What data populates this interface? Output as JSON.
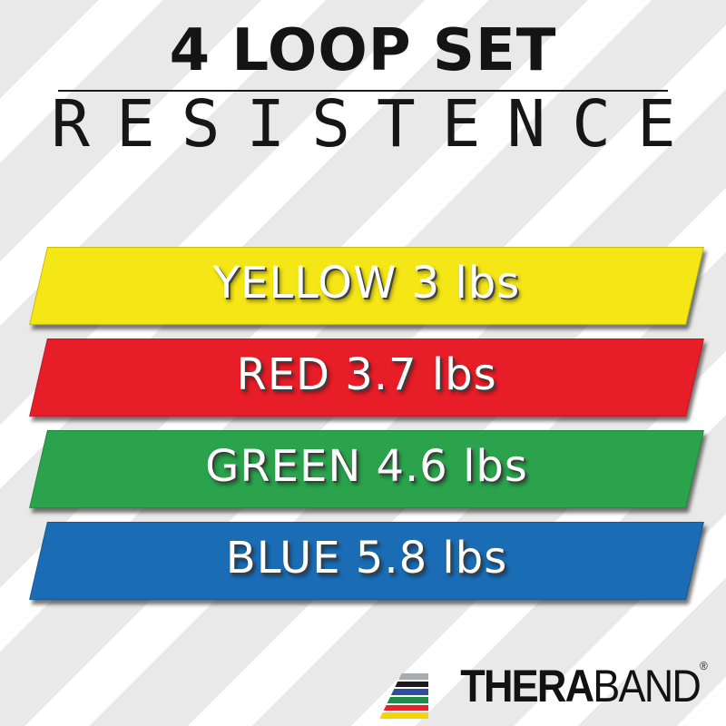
{
  "header": {
    "title": "4 LOOP SET",
    "subtitle": "RESISTENCE"
  },
  "bands": [
    {
      "name": "yellow",
      "label": "YELLOW 3 lbs",
      "color": "#f5e616",
      "weight_lbs": 3.0
    },
    {
      "name": "red",
      "label": "RED 3.7 lbs",
      "color": "#e71d28",
      "weight_lbs": 3.7
    },
    {
      "name": "green",
      "label": "GREEN 4.6 lbs",
      "color": "#2ba34c",
      "weight_lbs": 4.6
    },
    {
      "name": "blue",
      "label": "BLUE 5.8 lbs",
      "color": "#1a6cb4",
      "weight_lbs": 5.8
    }
  ],
  "logo": {
    "brand_bold": "THERA",
    "brand_light": "BAND",
    "registered": "®",
    "stripes": [
      "#a9abae",
      "#1b1b1b",
      "#2c4fa0",
      "#208a46",
      "#e8232c",
      "#f3d505"
    ]
  },
  "style": {
    "background_stripe_gray": "#e9e9e9",
    "text_black": "#141414",
    "band_text_white": "#ffffff"
  }
}
